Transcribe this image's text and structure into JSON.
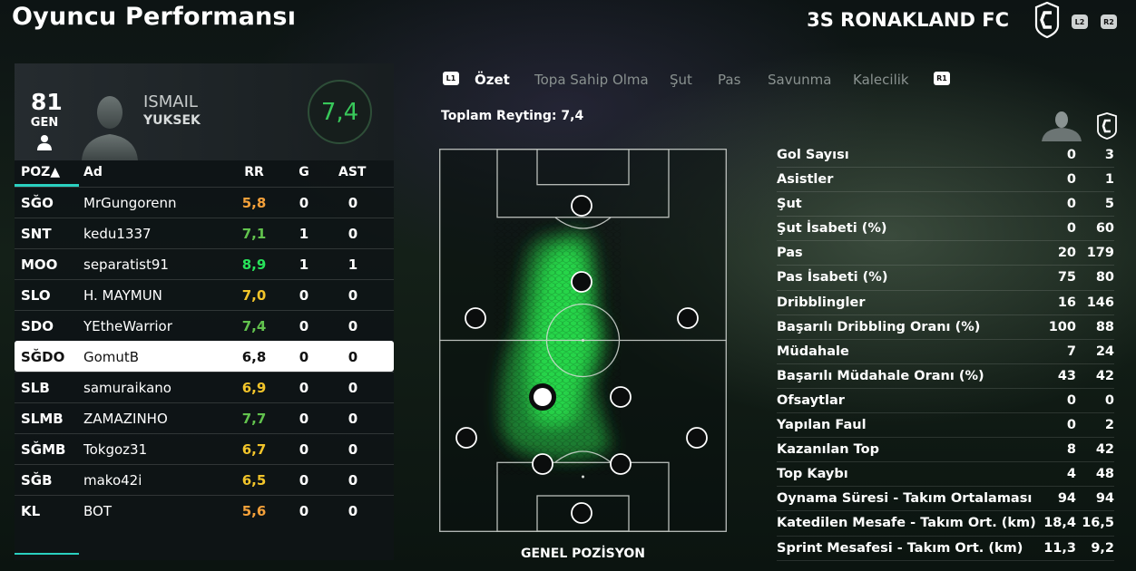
{
  "header": {
    "title": "Oyuncu Performansı",
    "club": "3S RONAKLAND FC",
    "left_button": "L2",
    "right_button": "R2"
  },
  "player": {
    "ovr": "81",
    "position": "GEN",
    "first_name": "ISMAIL",
    "last_name": "YUKSEK",
    "rating": "7,4"
  },
  "table": {
    "headers": {
      "pos": "POZ▲",
      "name": "Ad",
      "rr": "RR",
      "g": "G",
      "ast": "AST"
    },
    "rows": [
      {
        "pos": "SĞO",
        "name": "MrGungorenn",
        "rr": "5,8",
        "g": "0",
        "ast": "0",
        "rr_color": "#f5a13a"
      },
      {
        "pos": "SNT",
        "name": "kedu1337",
        "rr": "7,1",
        "g": "1",
        "ast": "0",
        "rr_color": "#62c34e"
      },
      {
        "pos": "MOO",
        "name": "separatist91",
        "rr": "8,9",
        "g": "1",
        "ast": "1",
        "rr_color": "#28e35a"
      },
      {
        "pos": "SLO",
        "name": "H. MAYMUN",
        "rr": "7,0",
        "g": "0",
        "ast": "0",
        "rr_color": "#f3c52a"
      },
      {
        "pos": "SDO",
        "name": "YEtheWarrior",
        "rr": "7,4",
        "g": "0",
        "ast": "0",
        "rr_color": "#62c34e"
      },
      {
        "pos": "SĞDO",
        "name": "GomutB",
        "rr": "6,8",
        "g": "0",
        "ast": "0",
        "rr_color": "#111111"
      },
      {
        "pos": "SLB",
        "name": "samuraikano",
        "rr": "6,9",
        "g": "0",
        "ast": "0",
        "rr_color": "#f3c52a"
      },
      {
        "pos": "SLMB",
        "name": "ZAMAZINHO",
        "rr": "7,7",
        "g": "0",
        "ast": "0",
        "rr_color": "#62c34e"
      },
      {
        "pos": "SĞMB",
        "name": "Tokgoz31",
        "rr": "6,7",
        "g": "0",
        "ast": "0",
        "rr_color": "#f3c52a"
      },
      {
        "pos": "SĞB",
        "name": "mako42i",
        "rr": "6,5",
        "g": "0",
        "ast": "0",
        "rr_color": "#f3c52a"
      },
      {
        "pos": "KL",
        "name": "BOT",
        "rr": "5,6",
        "g": "0",
        "ast": "0",
        "rr_color": "#f5a13a"
      }
    ],
    "selected_index": 5
  },
  "tabs": {
    "left_badge": "L1",
    "right_badge": "R1",
    "items": [
      "Özet",
      "Topa Sahip Olma",
      "Şut",
      "Pas",
      "Savunma",
      "Kalecilik"
    ],
    "active": "Özet"
  },
  "total_rating": "Toplam Reyting: 7,4",
  "pitch_label": "GENEL POZİSYON",
  "stats": [
    {
      "label": "Gol Sayısı",
      "player": "0",
      "team": "3"
    },
    {
      "label": "Asistler",
      "player": "0",
      "team": "1"
    },
    {
      "label": "Şut",
      "player": "0",
      "team": "5"
    },
    {
      "label": "Şut İsabeti (%)",
      "player": "0",
      "team": "60"
    },
    {
      "label": "Pas",
      "player": "20",
      "team": "179"
    },
    {
      "label": "Pas İsabeti (%)",
      "player": "75",
      "team": "80"
    },
    {
      "label": "Dribblingler",
      "player": "16",
      "team": "146"
    },
    {
      "label": "Başarılı Dribbling Oranı (%)",
      "player": "100",
      "team": "88"
    },
    {
      "label": "Müdahale",
      "player": "7",
      "team": "24"
    },
    {
      "label": "Başarılı Müdahale Oranı (%)",
      "player": "43",
      "team": "42"
    },
    {
      "label": "Ofsaytlar",
      "player": "0",
      "team": "0"
    },
    {
      "label": "Yapılan Faul",
      "player": "0",
      "team": "2"
    },
    {
      "label": "Kazanılan Top",
      "player": "8",
      "team": "42"
    },
    {
      "label": "Top Kaybı",
      "player": "4",
      "team": "48"
    },
    {
      "label": "Oynama Süresi - Takım Ortalaması",
      "player": "94",
      "team": "94"
    },
    {
      "label": "Katedilen Mesafe - Takım Ort. (km)",
      "player": "18,4",
      "team": "16,5"
    },
    {
      "label": "Sprint Mesafesi - Takım Ort. (km)",
      "player": "11,3",
      "team": "9,2"
    }
  ],
  "icons": {
    "club_logo": "club-crest-icon",
    "player_avatar": "player-silhouette-icon",
    "person": "person-icon"
  },
  "colors": {
    "accent": "#2ad0c0",
    "rating_green": "#38c85a",
    "heatmap": "#22e04a"
  }
}
